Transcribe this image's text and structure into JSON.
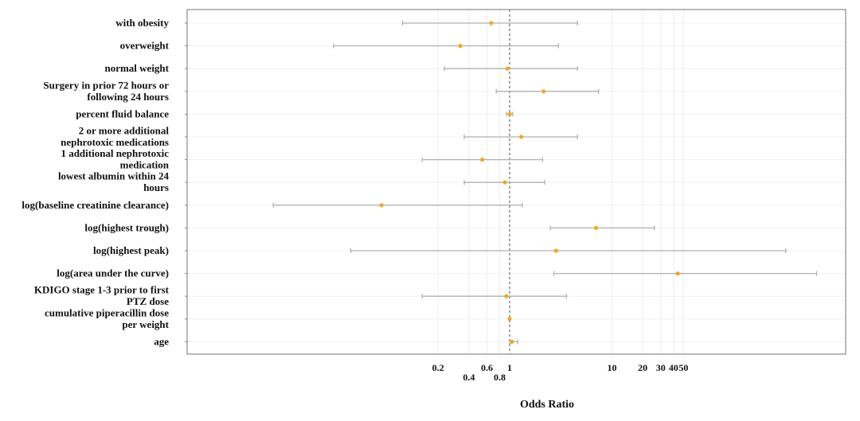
{
  "chart_data": {
    "type": "forest",
    "xlabel": "Odds Ratio",
    "x_scale": "log",
    "reference_line": 1,
    "x_ticks": [
      {
        "value": 0.2,
        "label": "0.2",
        "row": 0
      },
      {
        "value": 0.4,
        "label": "0.4",
        "row": 1
      },
      {
        "value": 0.6,
        "label": "0.6",
        "row": 0
      },
      {
        "value": 0.8,
        "label": "0.8",
        "row": 1
      },
      {
        "value": 1,
        "label": "1",
        "row": 0
      },
      {
        "value": 10,
        "label": "10",
        "row": 0
      },
      {
        "value": 20,
        "label": "20",
        "row": 0
      },
      {
        "value": 30,
        "label": "30",
        "row": 0
      },
      {
        "value": 40,
        "label": "40",
        "row": 0
      },
      {
        "value": 50,
        "label": "50",
        "row": 0
      }
    ],
    "grid": true,
    "point_color": "#f5a623",
    "ci_color": "#b0b0b0",
    "rows": [
      {
        "label": [
          "with obesity"
        ],
        "or": 0.66,
        "lo": 0.09,
        "hi": 4.6
      },
      {
        "label": [
          "overweight"
        ],
        "or": 0.33,
        "lo": 0.019,
        "hi": 3.0
      },
      {
        "label": [
          "normal weight"
        ],
        "or": 0.95,
        "lo": 0.23,
        "hi": 4.6
      },
      {
        "label": [
          "Surgery in prior 72 hours or",
          "following 24 hours"
        ],
        "or": 2.15,
        "lo": 0.74,
        "hi": 7.4
      },
      {
        "label": [
          "percent fluid balance"
        ],
        "or": 1.0,
        "lo": 0.93,
        "hi": 1.07
      },
      {
        "label": [
          "2 or more additional",
          "nephrotoxic medications"
        ],
        "or": 1.3,
        "lo": 0.36,
        "hi": 4.6
      },
      {
        "label": [
          "1 additional nephrotoxic",
          "medication"
        ],
        "or": 0.54,
        "lo": 0.14,
        "hi": 2.1
      },
      {
        "label": [
          "lowest albumin within 24",
          "hours"
        ],
        "or": 0.9,
        "lo": 0.36,
        "hi": 2.2
      },
      {
        "label": [
          "log(baseline creatinine clearance)"
        ],
        "or": 0.056,
        "lo": 0.0049,
        "hi": 1.33
      },
      {
        "label": [
          "log(highest trough)"
        ],
        "or": 7.0,
        "lo": 2.5,
        "hi": 26.0
      },
      {
        "label": [
          "log(highest peak)"
        ],
        "or": 2.85,
        "lo": 0.028,
        "hi": 500
      },
      {
        "label": [
          "log(area under the curve)"
        ],
        "or": 44.0,
        "lo": 2.7,
        "hi": 1000
      },
      {
        "label": [
          "KDIGO stage 1-3 prior to first",
          "PTZ dose"
        ],
        "or": 0.93,
        "lo": 0.14,
        "hi": 3.6
      },
      {
        "label": [
          "cumulative piperacillin dose",
          "per weight"
        ],
        "or": 1.0,
        "lo": 0.99,
        "hi": 1.01
      },
      {
        "label": [
          "age"
        ],
        "or": 1.05,
        "lo": 1.01,
        "hi": 1.2
      }
    ]
  }
}
